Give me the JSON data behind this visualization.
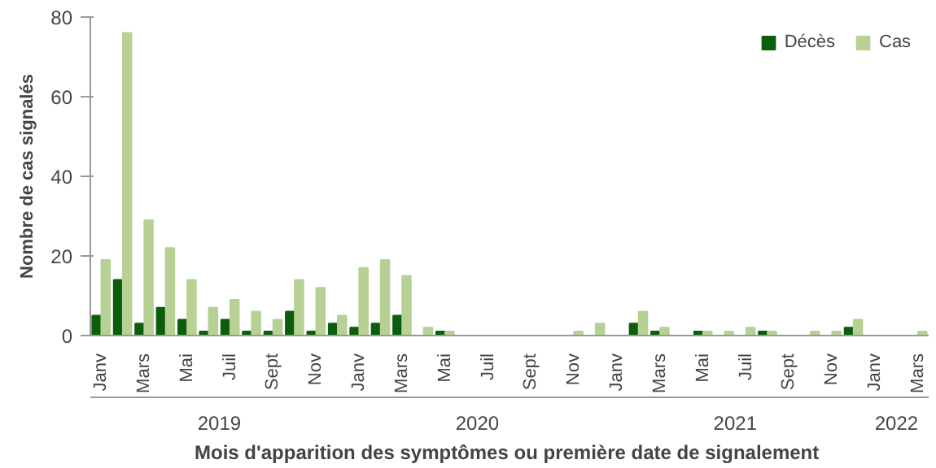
{
  "chart_data": {
    "type": "bar",
    "categories": [
      "Janv",
      null,
      "Mars",
      null,
      "Mai",
      null,
      "Juil",
      null,
      "Sept",
      null,
      "Nov",
      null,
      "Janv",
      null,
      "Mars",
      null,
      "Mai",
      null,
      "Juil",
      null,
      "Sept",
      null,
      "Nov",
      null,
      "Janv",
      null,
      "Mars",
      null,
      "Mai",
      null,
      "Juil",
      null,
      "Sept",
      null,
      "Nov",
      null,
      "Janv",
      null,
      "Mars"
    ],
    "series": [
      {
        "name": "Décès",
        "color": "#0b5e0b",
        "values": [
          5,
          14,
          3,
          7,
          4,
          1,
          4,
          1,
          1,
          6,
          1,
          3,
          2,
          3,
          5,
          0,
          1,
          0,
          0,
          0,
          0,
          0,
          0,
          0,
          0,
          3,
          1,
          0,
          1,
          0,
          0,
          1,
          0,
          0,
          0,
          2,
          0,
          0,
          0
        ]
      },
      {
        "name": "Cas",
        "color": "#b6d193",
        "values": [
          19,
          76,
          29,
          22,
          14,
          7,
          9,
          6,
          4,
          14,
          12,
          5,
          17,
          19,
          15,
          2,
          1,
          0,
          0,
          0,
          0,
          0,
          1,
          3,
          0,
          6,
          2,
          0,
          1,
          1,
          2,
          1,
          0,
          1,
          1,
          4,
          0,
          0,
          1
        ]
      }
    ],
    "ylabel": "Nombre de cas signalés",
    "xlabel": "Mois d'apparition  des symptômes ou première date de signalement",
    "annotations": [
      "2019",
      "2020",
      "2021",
      "2022"
    ],
    "ylim": [
      0,
      80
    ],
    "yticks": [
      0,
      20,
      40,
      60,
      80
    ],
    "grid": false,
    "legend": "top right"
  }
}
